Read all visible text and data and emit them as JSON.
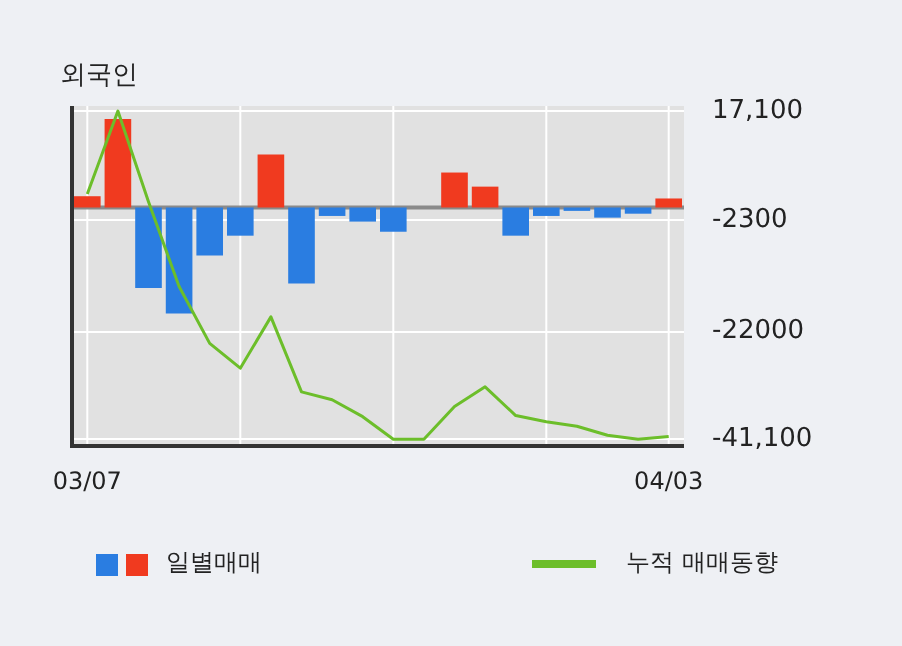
{
  "chart_data": {
    "type": "bar",
    "title": "외국인",
    "categories": [
      "03/07",
      null,
      null,
      null,
      null,
      null,
      null,
      null,
      null,
      null,
      null,
      null,
      null,
      null,
      null,
      null,
      null,
      null,
      null,
      "04/03"
    ],
    "series": [
      {
        "name": "일별매매",
        "colors": [
          "#f03a1f",
          "#f03a1f",
          "#2a7de1",
          "#2a7de1",
          "#2a7de1",
          "#2a7de1",
          "#f03a1f",
          "#2a7de1",
          "#2a7de1",
          "#2a7de1",
          "#2a7de1",
          "#2a7de1",
          "#f03a1f",
          "#f03a1f",
          "#2a7de1",
          "#2a7de1",
          "#2a7de1",
          "#2a7de1",
          "#2a7de1",
          "#f03a1f"
        ],
        "values": [
          2000,
          15700,
          -14300,
          -18800,
          -8500,
          -5000,
          9400,
          -13500,
          -1500,
          -2500,
          -4300,
          0,
          6200,
          3700,
          -5000,
          -1500,
          -600,
          -1800,
          -1100,
          1600
        ]
      },
      {
        "type": "line",
        "name": "누적 매매동향",
        "color": "#6cbe2a",
        "values": [
          2400,
          17100,
          1000,
          -14000,
          -24100,
          -28500,
          -19400,
          -32700,
          -34100,
          -37100,
          -41100,
          -41100,
          -35300,
          -31800,
          -36900,
          -38000,
          -38800,
          -40400,
          -41100,
          -40600
        ]
      }
    ],
    "ylim": [
      -42300,
      18000
    ],
    "yticks": [
      {
        "value": 17100,
        "label": "17,100"
      },
      -2300,
      -22000,
      {
        "value": -41100,
        "label": "-41,100"
      }
    ],
    "grid": true,
    "legend": "bottom",
    "marker": "none",
    "line_style": "solid"
  }
}
